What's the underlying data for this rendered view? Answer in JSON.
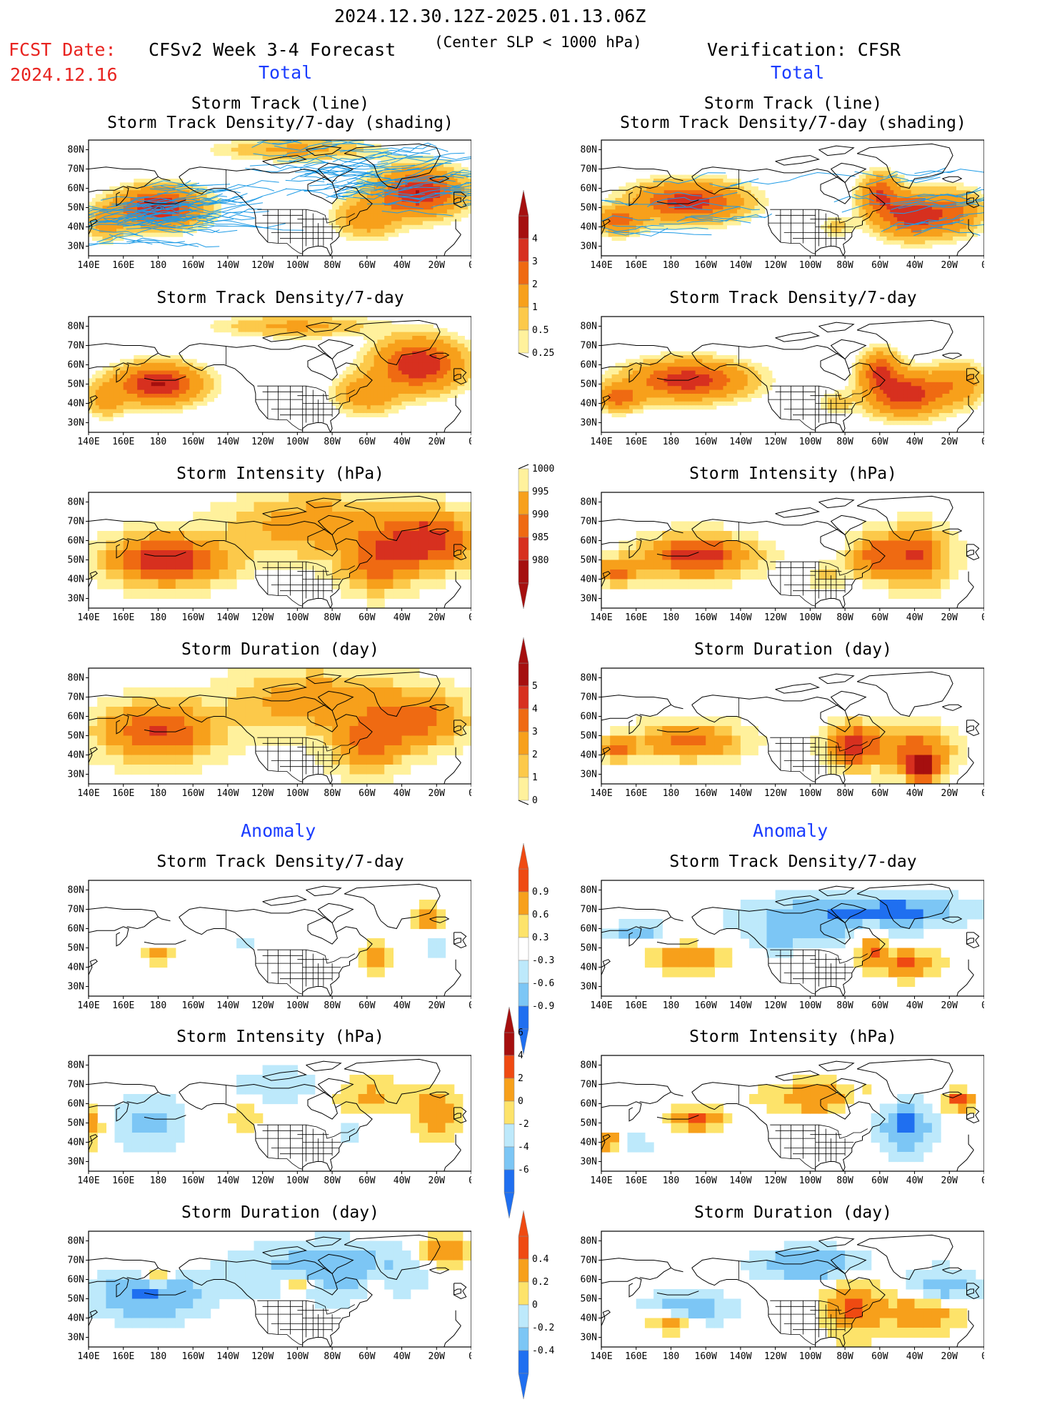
{
  "header": {
    "date_range": "2024.12.30.12Z-2025.01.13.06Z",
    "fcst_label": "FCST Date:",
    "fcst_date": "2024.12.16",
    "model_title": "CFSv2 Week 3-4 Forecast",
    "criterion": "(Center SLP < 1000 hPa)",
    "verification": "Verification: CFSR"
  },
  "sections": {
    "total_left": "Total",
    "total_right": "Total",
    "anomaly_left": "Anomaly",
    "anomaly_right": "Anomaly"
  },
  "panel_titles": {
    "track_line": "Storm Track (line)",
    "track_shading": "Storm Track Density/7-day (shading)",
    "density": "Storm Track Density/7-day",
    "intensity": "Storm Intensity (hPa)",
    "duration": "Storm Duration (day)"
  },
  "axes": {
    "lat_ticks": [
      "80N",
      "70N",
      "60N",
      "50N",
      "40N",
      "30N"
    ],
    "lon_ticks": [
      "140E",
      "160E",
      "180",
      "160W",
      "140W",
      "120W",
      "100W",
      "80W",
      "60W",
      "40W",
      "20W",
      "0"
    ]
  },
  "colorbars": [
    {
      "name": "density-total",
      "labels": [
        "4",
        "3",
        "2",
        "1",
        "0.5",
        "0.25"
      ],
      "colors": [
        "#a50f0f",
        "#d7301f",
        "#ef6a12",
        "#f7a01b",
        "#fcc94a",
        "#fff19c"
      ]
    },
    {
      "name": "intensity-total",
      "labels": [
        "1000",
        "995",
        "990",
        "985",
        "980"
      ],
      "colors": [
        "#fff19c",
        "#f7a01b",
        "#ef6a12",
        "#d7301f",
        "#a50f0f"
      ]
    },
    {
      "name": "duration-total",
      "labels": [
        "5",
        "4",
        "3",
        "2",
        "1",
        "0"
      ],
      "colors": [
        "#a50f0f",
        "#d7301f",
        "#ef6a12",
        "#f7a01b",
        "#fcc94a",
        "#fff19c"
      ]
    },
    {
      "name": "density-anom",
      "labels": [
        "0.9",
        "0.6",
        "0.3",
        "-0.3",
        "-0.6",
        "-0.9"
      ],
      "colors": [
        "#ef4a12",
        "#f7a01b",
        "#fde36a",
        "#ffffff",
        "#bde9fb",
        "#7cc6f5",
        "#1f6ff0"
      ]
    },
    {
      "name": "intensity-anom",
      "labels": [
        "6",
        "4",
        "2",
        "0",
        "-2",
        "-4",
        "-6"
      ],
      "colors": [
        "#a50f0f",
        "#ef4a12",
        "#f7a01b",
        "#fde36a",
        "#bde9fb",
        "#7cc6f5",
        "#1f6ff0"
      ]
    },
    {
      "name": "duration-anom",
      "labels": [
        "0.4",
        "0.2",
        "0",
        "-0.2",
        "-0.4"
      ],
      "colors": [
        "#ef4a12",
        "#f7a01b",
        "#fde36a",
        "#bde9fb",
        "#7cc6f5",
        "#1f6ff0"
      ]
    }
  ],
  "colors": {
    "track_line": "#1e9be6",
    "label_red": "#e8231f",
    "label_blue": "#1a3cff"
  }
}
